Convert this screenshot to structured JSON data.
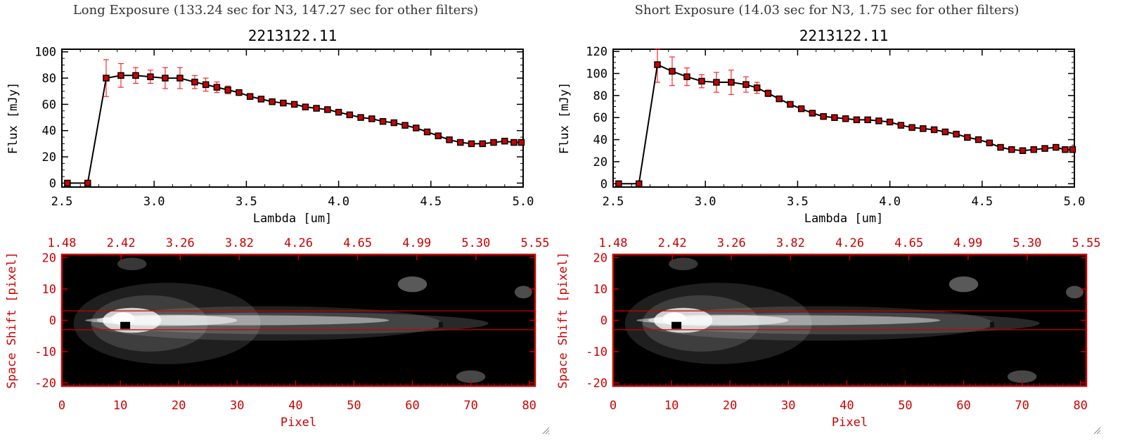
{
  "panels": [
    {
      "caption": "Long Exposure (133.24 sec for N3, 147.27 sec for other filters)",
      "chart_data": {
        "type": "line",
        "title": "2213122.11",
        "xlabel": "Lambda [um]",
        "ylabel": "Flux [mJy]",
        "xlim": [
          2.5,
          5.0
        ],
        "ylim": [
          -3,
          102
        ],
        "xticks": [
          "2.5",
          "3.0",
          "3.5",
          "4.0",
          "4.5",
          "5.0"
        ],
        "yticks": [
          "0",
          "20",
          "40",
          "60",
          "80",
          "100"
        ],
        "line_color": "#000000",
        "marker_color": "#cc0000",
        "error_color": "#ff0000",
        "x": [
          2.53,
          2.64,
          2.74,
          2.82,
          2.9,
          2.98,
          3.06,
          3.14,
          3.22,
          3.28,
          3.34,
          3.4,
          3.46,
          3.52,
          3.58,
          3.64,
          3.7,
          3.76,
          3.82,
          3.88,
          3.94,
          4.0,
          4.06,
          4.12,
          4.18,
          4.24,
          4.3,
          4.36,
          4.42,
          4.48,
          4.54,
          4.6,
          4.66,
          4.72,
          4.78,
          4.84,
          4.9,
          4.95,
          4.99
        ],
        "y": [
          0,
          0,
          80,
          82,
          82,
          81,
          80,
          80,
          77,
          75,
          73,
          71,
          69,
          66,
          64,
          62,
          61,
          60,
          58,
          57,
          56,
          54,
          52,
          50,
          49,
          47,
          46,
          44,
          42,
          39,
          36,
          33,
          31,
          30,
          30,
          31,
          32,
          31,
          31
        ],
        "yerr": [
          0,
          0,
          14,
          9,
          6,
          5,
          8,
          8,
          5,
          5,
          4,
          3,
          0,
          0,
          0,
          0,
          0,
          0,
          0,
          0,
          0,
          0,
          0,
          0,
          0,
          0,
          0,
          0,
          0,
          0,
          0,
          0,
          0,
          0,
          0,
          0,
          0,
          0,
          0
        ]
      },
      "image_data": {
        "type": "heatmap",
        "xlabel": "Pixel",
        "ylabel": "Space Shift [pixel]",
        "xlim": [
          0,
          81
        ],
        "ylim": [
          -21,
          21
        ],
        "xticks": [
          "0",
          "10",
          "20",
          "30",
          "40",
          "50",
          "60",
          "70",
          "80"
        ],
        "yticks": [
          "-20",
          "-10",
          "0",
          "10",
          "20"
        ],
        "top_ticks": [
          "1.48",
          "2.42",
          "3.26",
          "3.82",
          "4.26",
          "4.65",
          "4.99",
          "5.30",
          "5.55"
        ],
        "axis_color": "#cc0000",
        "guide_lines": [
          -3,
          3
        ]
      }
    },
    {
      "caption": "Short Exposure (14.03 sec for N3, 1.75 sec for other filters)",
      "chart_data": {
        "type": "line",
        "title": "2213122.11",
        "xlabel": "Lambda [um]",
        "ylabel": "Flux [mJy]",
        "xlim": [
          2.5,
          5.0
        ],
        "ylim": [
          -3,
          122
        ],
        "xticks": [
          "2.5",
          "3.0",
          "3.5",
          "4.0",
          "4.5",
          "5.0"
        ],
        "yticks": [
          "0",
          "20",
          "40",
          "60",
          "80",
          "100",
          "120"
        ],
        "line_color": "#000000",
        "marker_color": "#cc0000",
        "error_color": "#ff0000",
        "x": [
          2.53,
          2.64,
          2.74,
          2.82,
          2.9,
          2.98,
          3.06,
          3.14,
          3.22,
          3.28,
          3.34,
          3.4,
          3.46,
          3.52,
          3.58,
          3.64,
          3.7,
          3.76,
          3.82,
          3.88,
          3.94,
          4.0,
          4.06,
          4.12,
          4.18,
          4.24,
          4.3,
          4.36,
          4.42,
          4.48,
          4.54,
          4.6,
          4.66,
          4.72,
          4.78,
          4.84,
          4.9,
          4.95,
          4.99
        ],
        "y": [
          0,
          0,
          108,
          102,
          97,
          93,
          92,
          92,
          90,
          87,
          82,
          77,
          72,
          68,
          64,
          61,
          60,
          59,
          58,
          58,
          57,
          56,
          53,
          51,
          50,
          49,
          47,
          45,
          42,
          40,
          37,
          33,
          31,
          30,
          31,
          32,
          33,
          31,
          31
        ],
        "yerr": [
          0,
          0,
          16,
          13,
          8,
          6,
          9,
          11,
          7,
          5,
          3,
          2,
          0,
          0,
          0,
          0,
          0,
          0,
          0,
          0,
          0,
          0,
          0,
          0,
          0,
          0,
          0,
          0,
          0,
          0,
          0,
          0,
          0,
          0,
          0,
          0,
          0,
          0,
          0
        ]
      },
      "image_data": {
        "type": "heatmap",
        "xlabel": "Pixel",
        "ylabel": "Space Shift [pixel]",
        "xlim": [
          0,
          81
        ],
        "ylim": [
          -21,
          21
        ],
        "xticks": [
          "0",
          "10",
          "20",
          "30",
          "40",
          "50",
          "60",
          "70",
          "80"
        ],
        "yticks": [
          "-20",
          "-10",
          "0",
          "10",
          "20"
        ],
        "top_ticks": [
          "1.48",
          "2.42",
          "3.26",
          "3.82",
          "4.26",
          "4.65",
          "4.99",
          "5.30",
          "5.55"
        ],
        "axis_color": "#cc0000",
        "guide_lines": [
          -3,
          3
        ]
      }
    }
  ]
}
